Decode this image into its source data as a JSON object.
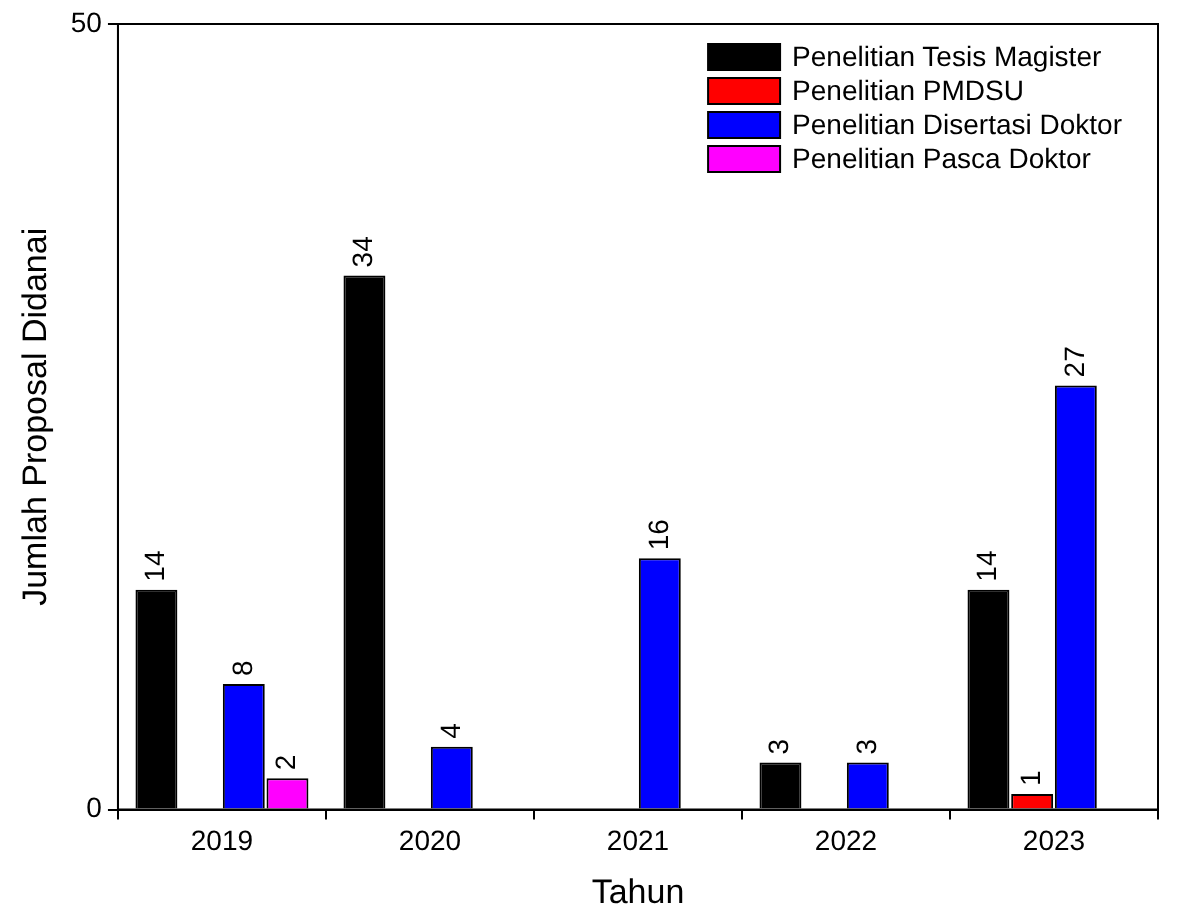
{
  "chart_data": {
    "type": "bar",
    "xlabel": "Tahun",
    "ylabel": "Jumlah Proposal Didanai",
    "categories": [
      "2019",
      "2020",
      "2021",
      "2022",
      "2023"
    ],
    "series": [
      {
        "name": "Penelitian Tesis Magister",
        "color": "#000000",
        "values": [
          14,
          34,
          null,
          3,
          14
        ]
      },
      {
        "name": "Penelitian PMDSU",
        "color": "#ff0000",
        "values": [
          null,
          null,
          null,
          null,
          1
        ]
      },
      {
        "name": "Penelitian Disertasi Doktor",
        "color": "#0000ff",
        "values": [
          8,
          4,
          16,
          3,
          27
        ]
      },
      {
        "name": "Penelitian Pasca Doktor",
        "color": "#ff00ff",
        "values": [
          2,
          null,
          null,
          null,
          null
        ]
      }
    ],
    "ylim": [
      0,
      50
    ],
    "yticks": [
      0,
      50
    ],
    "grid": false,
    "legend": "top right",
    "data_labels": true
  }
}
